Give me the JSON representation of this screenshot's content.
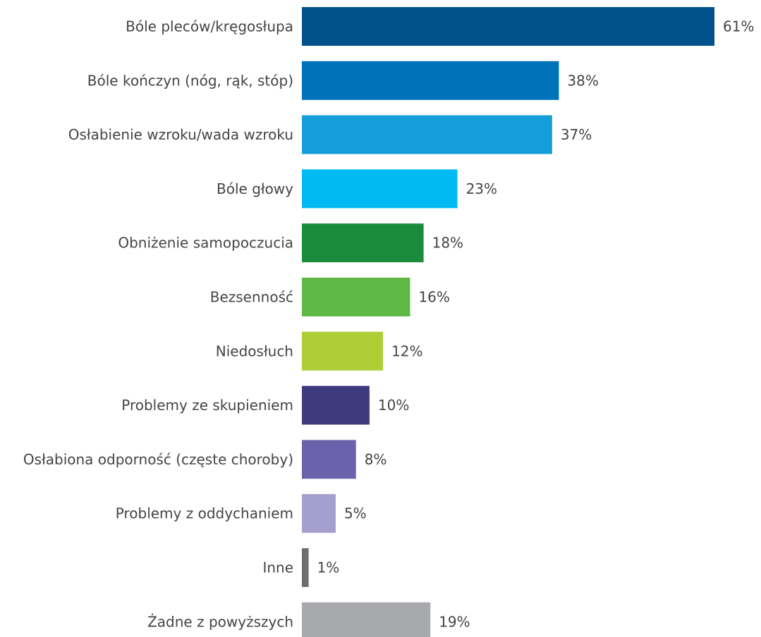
{
  "chart_data": {
    "type": "bar",
    "orientation": "horizontal",
    "categories": [
      "Bóle pleców/kręgosłupa",
      "Bóle kończyn (nóg, rąk, stóp)",
      "Osłabienie wzroku/wada wzroku",
      "Bóle głowy",
      "Obniżenie samopoczucia",
      "Bezsenność",
      "Niedosłuch",
      "Problemy ze skupieniem",
      "Osłabiona odporność (częste choroby)",
      "Problemy z oddychaniem",
      "Inne",
      "Żadne z powyższych"
    ],
    "values": [
      61,
      38,
      37,
      23,
      18,
      16,
      12,
      10,
      8,
      5,
      1,
      19
    ],
    "value_labels": [
      "61%",
      "38%",
      "37%",
      "23%",
      "18%",
      "16%",
      "12%",
      "10%",
      "8%",
      "5%",
      "1%",
      "19%"
    ],
    "colors": [
      "#00528c",
      "#0072bb",
      "#159ed9",
      "#00baf2",
      "#1a8b3b",
      "#5fb846",
      "#afcd36",
      "#3d3a7e",
      "#6a63ab",
      "#a59fce",
      "#6d6e71",
      "#a7a9ac"
    ],
    "title": "",
    "xlabel": "",
    "ylabel": "",
    "xlim": [
      0,
      61
    ],
    "grid": false,
    "legend": "none"
  }
}
